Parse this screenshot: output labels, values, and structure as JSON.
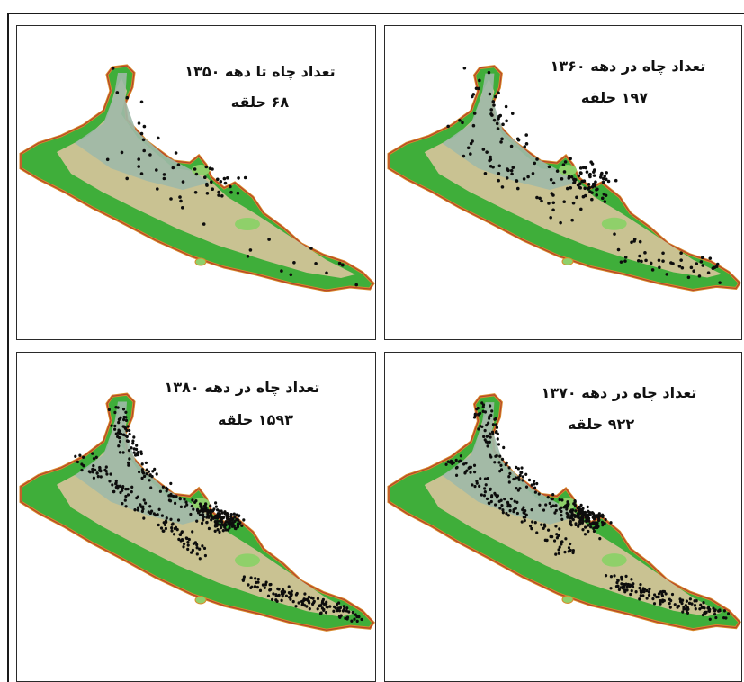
{
  "panels": [
    {
      "id": "p1350",
      "title": "تعداد چاه تا دهه ۱۳۵۰",
      "count": "۶۸ حلقه",
      "wells": 68,
      "spread": "sparse"
    },
    {
      "id": "p1360",
      "title": "تعداد چاه در دهه ۱۳۶۰",
      "count": "۱۹۷ حلقه",
      "wells": 197,
      "spread": "sparse"
    },
    {
      "id": "p1380",
      "title": "تعداد چاه در دهه ۱۳۸۰",
      "count": "۱۵۹۳ حلقه",
      "wells": 1593,
      "spread": "dense"
    },
    {
      "id": "p1370",
      "title": "تعداد چاه در دهه ۱۳۷۰",
      "count": "۹۲۲ حلقه",
      "wells": 922,
      "spread": "dense"
    }
  ],
  "colors": {
    "plain": "#9fb9a8",
    "lowland": "#c9c292",
    "rim_green": "#3fae3a",
    "highland": "#8fd06a",
    "mountain_orange": "#d98b2a",
    "mountain_red": "#b5452b",
    "well_dot": "#0d0d0d"
  }
}
